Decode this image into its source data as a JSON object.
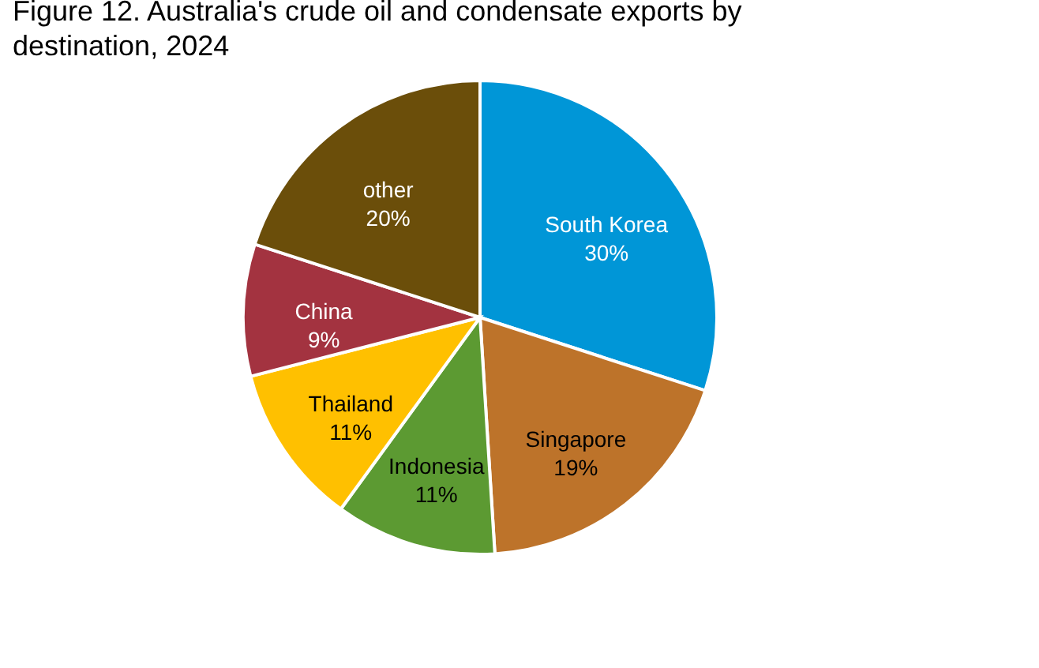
{
  "chart_data": {
    "type": "pie",
    "title": "Figure 12. Australia's crude oil and condensate exports by destination, 2024",
    "categories": [
      "South Korea",
      "Singapore",
      "Indonesia",
      "Thailand",
      "China",
      "other"
    ],
    "values": [
      30,
      19,
      11,
      11,
      9,
      20
    ],
    "colors": [
      "#0096d7",
      "#bd732a",
      "#5c9a32",
      "#ffc000",
      "#a33340",
      "#6b4e0a"
    ],
    "value_labels": [
      "30%",
      "19%",
      "11%",
      "11%",
      "9%",
      "20%"
    ],
    "legend": false
  }
}
